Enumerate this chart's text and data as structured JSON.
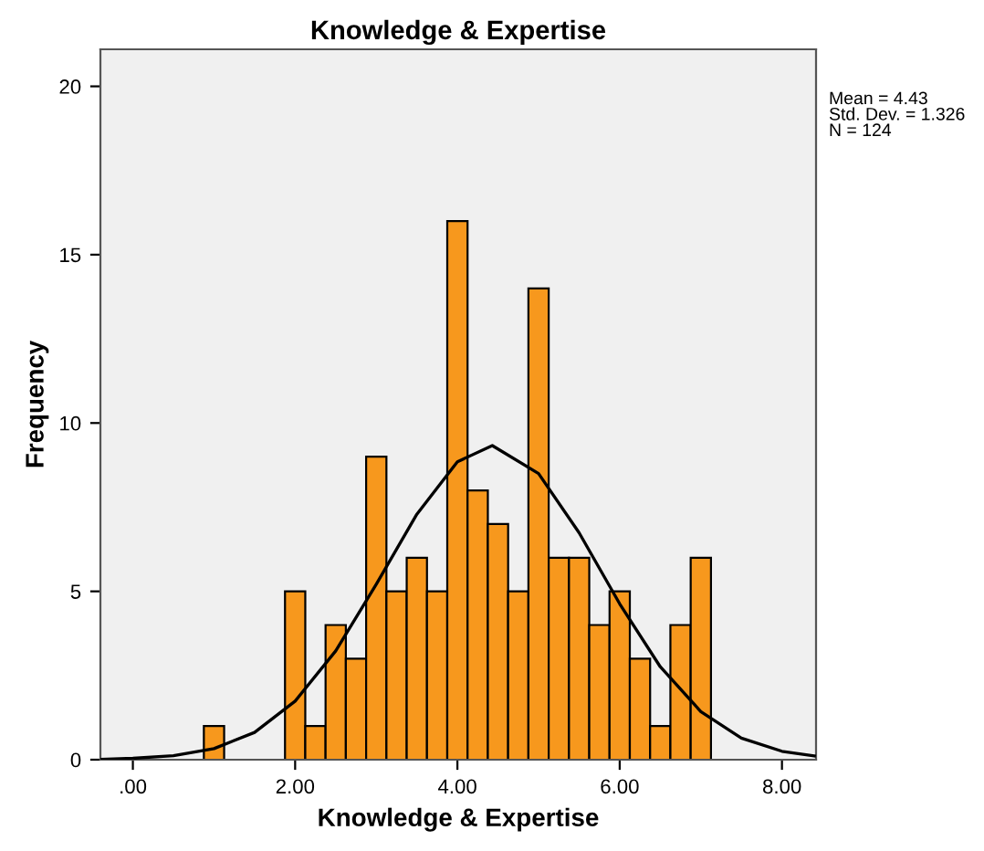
{
  "chart_data": {
    "type": "histogram",
    "title": "Knowledge & Expertise",
    "xlabel": "Knowledge & Expertise",
    "ylabel": "Frequency",
    "bins": [
      0.875,
      1.125,
      1.375,
      1.625,
      1.875,
      2.125,
      2.375,
      2.625,
      2.875,
      3.125,
      3.375,
      3.625,
      3.875,
      4.125,
      4.375,
      4.625,
      4.875,
      5.125,
      5.375,
      5.625,
      5.875,
      6.125,
      6.375,
      6.625,
      6.875,
      7.125
    ],
    "values": [
      1,
      0,
      0,
      0,
      5,
      1,
      4,
      3,
      9,
      5,
      6,
      5,
      16,
      8,
      7,
      5,
      14,
      6,
      6,
      4,
      5,
      3,
      1,
      4,
      6
    ],
    "color": "#f7981d",
    "series": [
      {
        "type": "line",
        "color": "#000000",
        "x": [
          -0.4,
          0,
          0.5,
          1,
          1.5,
          2,
          2.5,
          3,
          3.5,
          4,
          4.43,
          5,
          5.5,
          6,
          6.5,
          7,
          7.5,
          8,
          8.4
        ],
        "values": [
          0.01,
          0.04,
          0.12,
          0.33,
          0.81,
          1.74,
          3.23,
          5.21,
          7.29,
          8.85,
          9.33,
          8.5,
          6.74,
          4.63,
          2.76,
          1.43,
          0.64,
          0.25,
          0.11
        ]
      }
    ],
    "xlim": [
      -0.4,
      8.42
    ],
    "ylim": [
      0,
      21.1
    ],
    "xticks": [
      {
        "value": 0,
        "label": ".00"
      },
      {
        "value": 2,
        "label": "2.00"
      },
      {
        "value": 4,
        "label": "4.00"
      },
      {
        "value": 6,
        "label": "6.00"
      },
      {
        "value": 8,
        "label": "8.00"
      }
    ],
    "yticks": [
      0,
      5,
      10,
      15,
      20
    ],
    "annotations": [
      "Mean = 4.43\nStd. Dev. = 1.326\nN = 124"
    ]
  }
}
